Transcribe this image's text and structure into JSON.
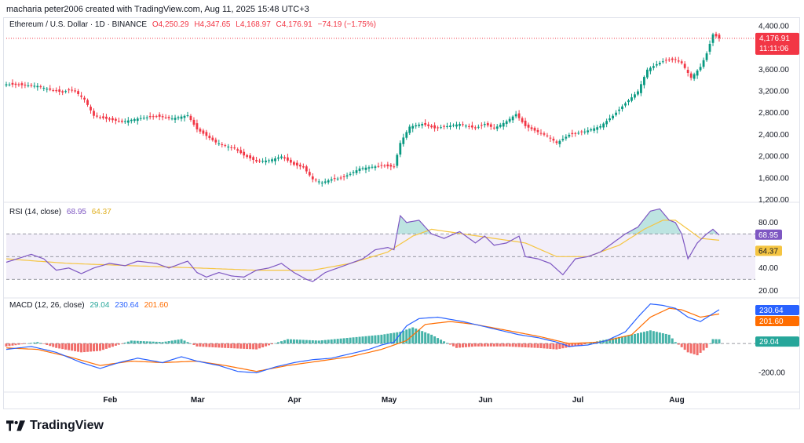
{
  "header": {
    "attribution": "macharia peter2006 created with TradingView.com, Aug 11, 2025 15:48 UTC+3"
  },
  "symbol": {
    "name": "Ethereum / U.S. Dollar · 1D · BINANCE",
    "open": "O4,250.29",
    "high": "H4,347.65",
    "low": "L4,168.97",
    "close": "C4,176.91",
    "change": "−74.19 (−1.75%)",
    "last_price_tag": "4,176.91",
    "countdown_tag": "11:11:06"
  },
  "rsi_legend": {
    "label": "RSI (14, close)",
    "value": "68.95",
    "ma_value": "64.37"
  },
  "macd_legend": {
    "label": "MACD (12, 26, close)",
    "hist": "29.04",
    "macd": "230.64",
    "signal": "201.60"
  },
  "footer": {
    "brand": "TradingView"
  },
  "colors": {
    "up": "#089981",
    "down": "#f23645",
    "rsi_line": "#7e57c2",
    "rsi_ma": "#f5c542",
    "macd_line": "#2962ff",
    "signal_line": "#ff6d00",
    "hist_up": "#26a69a",
    "hist_down": "#ef5350"
  },
  "chart_data": [
    {
      "type": "candlestick",
      "title": "Ethereum / U.S. Dollar · 1D · BINANCE",
      "ylim": [
        1200,
        4450
      ],
      "yticks": [
        "4,400.00",
        "4,000.00",
        "3,600.00",
        "3,200.00",
        "2,800.00",
        "2,400.00",
        "2,000.00",
        "1,600.00",
        "1,200.00"
      ],
      "ytick_values": [
        4400,
        4000,
        3600,
        3200,
        2800,
        2400,
        2000,
        1600,
        1200
      ],
      "months": [
        {
          "label": "Feb",
          "index": 33
        },
        {
          "label": "Mar",
          "index": 61
        },
        {
          "label": "Apr",
          "index": 92
        },
        {
          "label": "May",
          "index": 122
        },
        {
          "label": "Jun",
          "index": 153
        },
        {
          "label": "Jul",
          "index": 183
        },
        {
          "label": "Aug",
          "index": 214
        }
      ],
      "close_path": [
        [
          0,
          3330
        ],
        [
          10,
          3300
        ],
        [
          14,
          3230
        ],
        [
          18,
          3180
        ],
        [
          20,
          3230
        ],
        [
          22,
          3200
        ],
        [
          25,
          3050
        ],
        [
          28,
          2750
        ],
        [
          33,
          2680
        ],
        [
          37,
          2640
        ],
        [
          42,
          2700
        ],
        [
          48,
          2740
        ],
        [
          53,
          2700
        ],
        [
          58,
          2760
        ],
        [
          61,
          2500
        ],
        [
          64,
          2380
        ],
        [
          67,
          2260
        ],
        [
          70,
          2200
        ],
        [
          73,
          2150
        ],
        [
          76,
          2020
        ],
        [
          80,
          1910
        ],
        [
          84,
          1930
        ],
        [
          88,
          2000
        ],
        [
          92,
          1850
        ],
        [
          95,
          1800
        ],
        [
          98,
          1580
        ],
        [
          101,
          1520
        ],
        [
          104,
          1580
        ],
        [
          107,
          1600
        ],
        [
          110,
          1680
        ],
        [
          113,
          1780
        ],
        [
          117,
          1810
        ],
        [
          120,
          1830
        ],
        [
          124,
          1810
        ],
        [
          126,
          2250
        ],
        [
          129,
          2550
        ],
        [
          133,
          2600
        ],
        [
          137,
          2520
        ],
        [
          141,
          2560
        ],
        [
          145,
          2600
        ],
        [
          150,
          2520
        ],
        [
          153,
          2600
        ],
        [
          156,
          2520
        ],
        [
          160,
          2650
        ],
        [
          163,
          2780
        ],
        [
          166,
          2560
        ],
        [
          170,
          2450
        ],
        [
          173,
          2380
        ],
        [
          176,
          2250
        ],
        [
          180,
          2400
        ],
        [
          185,
          2460
        ],
        [
          190,
          2560
        ],
        [
          194,
          2750
        ],
        [
          198,
          2980
        ],
        [
          202,
          3200
        ],
        [
          205,
          3600
        ],
        [
          208,
          3700
        ],
        [
          211,
          3780
        ],
        [
          214,
          3780
        ],
        [
          216,
          3720
        ],
        [
          219,
          3450
        ],
        [
          222,
          3650
        ],
        [
          224,
          3900
        ],
        [
          226,
          4250
        ],
        [
          228,
          4176.91
        ]
      ]
    },
    {
      "type": "line",
      "title": "RSI (14, close)",
      "ylim": [
        15,
        95
      ],
      "yticks": [
        "80.00",
        "40.00",
        "20.00"
      ],
      "ytick_values": [
        80,
        40,
        20
      ],
      "bands": {
        "upper": 70,
        "middle": 50,
        "lower": 30
      },
      "series": [
        {
          "name": "RSI",
          "points": [
            [
              0,
              45
            ],
            [
              8,
              52
            ],
            [
              12,
              48
            ],
            [
              16,
              38
            ],
            [
              20,
              40
            ],
            [
              24,
              35
            ],
            [
              28,
              40
            ],
            [
              33,
              44
            ],
            [
              38,
              42
            ],
            [
              42,
              46
            ],
            [
              48,
              44
            ],
            [
              52,
              40
            ],
            [
              58,
              46
            ],
            [
              61,
              36
            ],
            [
              64,
              32
            ],
            [
              68,
              36
            ],
            [
              72,
              33
            ],
            [
              76,
              32
            ],
            [
              80,
              38
            ],
            [
              84,
              40
            ],
            [
              88,
              44
            ],
            [
              92,
              36
            ],
            [
              96,
              30
            ],
            [
              98,
              28
            ],
            [
              102,
              36
            ],
            [
              106,
              40
            ],
            [
              110,
              44
            ],
            [
              114,
              48
            ],
            [
              118,
              56
            ],
            [
              122,
              58
            ],
            [
              124,
              56
            ],
            [
              126,
              86
            ],
            [
              128,
              80
            ],
            [
              132,
              82
            ],
            [
              136,
              70
            ],
            [
              140,
              66
            ],
            [
              145,
              72
            ],
            [
              150,
              62
            ],
            [
              153,
              68
            ],
            [
              156,
              60
            ],
            [
              160,
              62
            ],
            [
              164,
              68
            ],
            [
              166,
              50
            ],
            [
              170,
              48
            ],
            [
              174,
              44
            ],
            [
              178,
              34
            ],
            [
              182,
              48
            ],
            [
              186,
              50
            ],
            [
              190,
              54
            ],
            [
              194,
              62
            ],
            [
              198,
              70
            ],
            [
              202,
              76
            ],
            [
              206,
              90
            ],
            [
              209,
              92
            ],
            [
              212,
              82
            ],
            [
              214,
              80
            ],
            [
              216,
              70
            ],
            [
              218,
              48
            ],
            [
              221,
              62
            ],
            [
              224,
              70
            ],
            [
              226,
              74
            ],
            [
              228,
              68.95
            ]
          ]
        },
        {
          "name": "RSI MA",
          "points": [
            [
              0,
              48
            ],
            [
              20,
              44
            ],
            [
              40,
              42
            ],
            [
              61,
              40
            ],
            [
              80,
              38
            ],
            [
              98,
              38
            ],
            [
              110,
              44
            ],
            [
              122,
              54
            ],
            [
              130,
              68
            ],
            [
              136,
              74
            ],
            [
              146,
              70
            ],
            [
              156,
              66
            ],
            [
              166,
              62
            ],
            [
              176,
              50
            ],
            [
              186,
              50
            ],
            [
              196,
              60
            ],
            [
              204,
              74
            ],
            [
              210,
              82
            ],
            [
              214,
              82
            ],
            [
              218,
              74
            ],
            [
              222,
              66
            ],
            [
              228,
              64.37
            ]
          ]
        }
      ]
    },
    {
      "type": "line",
      "title": "MACD (12, 26, close)",
      "ylim": [
        -320,
        300
      ],
      "yticks": [
        "-200.00"
      ],
      "ytick_values": [
        -200
      ],
      "series": [
        {
          "name": "MACD",
          "points": [
            [
              0,
              -40
            ],
            [
              8,
              -20
            ],
            [
              16,
              -60
            ],
            [
              24,
              -130
            ],
            [
              30,
              -170
            ],
            [
              36,
              -130
            ],
            [
              42,
              -100
            ],
            [
              50,
              -130
            ],
            [
              56,
              -90
            ],
            [
              61,
              -120
            ],
            [
              68,
              -150
            ],
            [
              74,
              -190
            ],
            [
              80,
              -200
            ],
            [
              86,
              -160
            ],
            [
              92,
              -130
            ],
            [
              98,
              -110
            ],
            [
              104,
              -100
            ],
            [
              110,
              -70
            ],
            [
              116,
              -40
            ],
            [
              120,
              -10
            ],
            [
              124,
              10
            ],
            [
              128,
              120
            ],
            [
              132,
              170
            ],
            [
              138,
              180
            ],
            [
              146,
              150
            ],
            [
              152,
              120
            ],
            [
              158,
              90
            ],
            [
              164,
              60
            ],
            [
              170,
              40
            ],
            [
              176,
              10
            ],
            [
              180,
              -20
            ],
            [
              186,
              -10
            ],
            [
              192,
              20
            ],
            [
              198,
              80
            ],
            [
              202,
              180
            ],
            [
              206,
              270
            ],
            [
              210,
              260
            ],
            [
              214,
              240
            ],
            [
              218,
              180
            ],
            [
              222,
              150
            ],
            [
              228,
              230.64
            ]
          ]
        },
        {
          "name": "Signal",
          "points": [
            [
              0,
              -30
            ],
            [
              10,
              -40
            ],
            [
              20,
              -90
            ],
            [
              30,
              -150
            ],
            [
              40,
              -120
            ],
            [
              50,
              -130
            ],
            [
              61,
              -120
            ],
            [
              70,
              -150
            ],
            [
              80,
              -190
            ],
            [
              90,
              -150
            ],
            [
              100,
              -120
            ],
            [
              110,
              -90
            ],
            [
              120,
              -40
            ],
            [
              128,
              20
            ],
            [
              134,
              130
            ],
            [
              142,
              150
            ],
            [
              150,
              130
            ],
            [
              160,
              90
            ],
            [
              170,
              50
            ],
            [
              180,
              0
            ],
            [
              190,
              10
            ],
            [
              200,
              60
            ],
            [
              206,
              180
            ],
            [
              212,
              240
            ],
            [
              216,
              230
            ],
            [
              222,
              180
            ],
            [
              228,
              201.6
            ]
          ]
        },
        {
          "name": "Histogram",
          "points": [
            [
              0,
              -20
            ],
            [
              10,
              10
            ],
            [
              16,
              -30
            ],
            [
              24,
              -60
            ],
            [
              30,
              -50
            ],
            [
              40,
              20
            ],
            [
              50,
              10
            ],
            [
              56,
              30
            ],
            [
              61,
              -20
            ],
            [
              70,
              -30
            ],
            [
              80,
              -40
            ],
            [
              90,
              30
            ],
            [
              100,
              20
            ],
            [
              110,
              40
            ],
            [
              120,
              60
            ],
            [
              126,
              80
            ],
            [
              130,
              110
            ],
            [
              136,
              60
            ],
            [
              144,
              -30
            ],
            [
              150,
              -20
            ],
            [
              160,
              -20
            ],
            [
              170,
              -30
            ],
            [
              176,
              -40
            ],
            [
              184,
              -10
            ],
            [
              190,
              20
            ],
            [
              200,
              60
            ],
            [
              206,
              90
            ],
            [
              212,
              60
            ],
            [
              214,
              10
            ],
            [
              218,
              -60
            ],
            [
              221,
              -80
            ],
            [
              224,
              -30
            ],
            [
              226,
              30
            ],
            [
              228,
              29.04
            ]
          ]
        }
      ]
    }
  ]
}
